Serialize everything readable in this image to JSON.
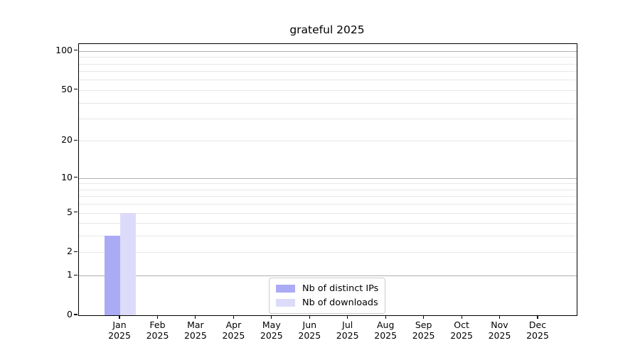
{
  "chart_data": {
    "type": "bar",
    "title": "grateful 2025",
    "categories": [
      "Jan 2025",
      "Feb 2025",
      "Mar 2025",
      "Apr 2025",
      "May 2025",
      "Jun 2025",
      "Jul 2025",
      "Aug 2025",
      "Sep 2025",
      "Oct 2025",
      "Nov 2025",
      "Dec 2025"
    ],
    "series": [
      {
        "name": "Nb of distinct IPs",
        "color": "#aaaaf5",
        "values": [
          3,
          0,
          0,
          0,
          0,
          0,
          0,
          0,
          0,
          0,
          0,
          0
        ]
      },
      {
        "name": "Nb of downloads",
        "color": "#dcdcfa",
        "values": [
          5,
          0,
          0,
          0,
          0,
          0,
          0,
          0,
          0,
          0,
          0,
          0
        ]
      }
    ],
    "xlabel": "",
    "ylabel": "",
    "yscale": "log1p",
    "ylim": [
      0,
      113
    ],
    "yticks": [
      0,
      1,
      2,
      5,
      10,
      20,
      50,
      100
    ],
    "gridlines": {
      "major": [
        1,
        10,
        100
      ],
      "minor": [
        2,
        3,
        4,
        5,
        6,
        7,
        8,
        9,
        20,
        30,
        40,
        50,
        60,
        70,
        80,
        90
      ]
    },
    "grid": true,
    "legend": {
      "position": "lower-center",
      "entries": [
        "Nb of distinct IPs",
        "Nb of downloads"
      ]
    },
    "colors": {
      "bar_distinct_ips": "#aaaaf5",
      "bar_downloads": "#dcdcfa",
      "major_grid": "#b0b0b0",
      "minor_grid": "#e7e7e7",
      "spine": "#000000",
      "text": "#000000",
      "legend_border": "#cccccc"
    }
  }
}
